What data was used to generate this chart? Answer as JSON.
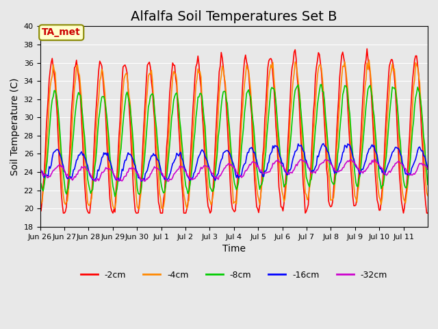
{
  "title": "Alfalfa Soil Temperatures Set B",
  "xlabel": "Time",
  "ylabel": "Soil Temperature (C)",
  "ylim": [
    18,
    40
  ],
  "yticks": [
    18,
    20,
    22,
    24,
    26,
    28,
    30,
    32,
    34,
    36,
    38,
    40
  ],
  "background_color": "#e8e8e8",
  "plot_bg_color": "#e8e8e8",
  "grid_color": "#ffffff",
  "colors": {
    "-2cm": "#ff0000",
    "-4cm": "#ff8800",
    "-8cm": "#00cc00",
    "-16cm": "#0000ff",
    "-32cm": "#cc00cc"
  },
  "annotation_text": "TA_met",
  "annotation_color": "#cc0000",
  "annotation_bg": "#ffffcc",
  "annotation_border": "#888800",
  "days": [
    "Jun 26",
    "Jun 27",
    "Jun 28",
    "Jun 29",
    "Jun 30",
    "Jul 1",
    "Jul 2",
    "Jul 3",
    "Jul 4",
    "Jul 5",
    "Jul 6",
    "Jul 7",
    "Jul 8",
    "Jul 9",
    "Jul 10",
    "Jul 11"
  ],
  "n_points": 384,
  "title_fontsize": 14,
  "n_days": 16
}
